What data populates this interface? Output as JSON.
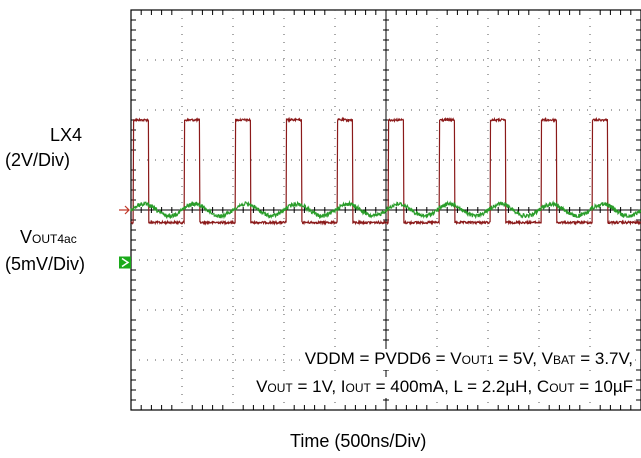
{
  "chart_data": {
    "type": "line",
    "title": "",
    "xlabel": "Time (500ns/Div)",
    "ylabel": "",
    "grid": true,
    "x_divisions": 10,
    "y_divisions": 8,
    "x_range_ns": [
      0,
      5000
    ],
    "channels": [
      {
        "name_main": "LX4",
        "name_sub": "",
        "scale": "(2V/Div)",
        "color": "#8b1a1a",
        "marker_color": "#c0392b",
        "marker_style": "outline-arrow",
        "kind": "square_wave",
        "period_ns": 500,
        "high_duration_ns": 150,
        "first_rise_ns": 25,
        "high_level_div": 1.8,
        "low_level_div": -0.25,
        "ground_marker_div": 0
      },
      {
        "name_main": "V",
        "name_sub": "OUT4ac",
        "scale": "(5mV/Div)",
        "color": "#2a9d2a",
        "marker_color": "#1aaa1a",
        "marker_style": "filled-arrow",
        "kind": "ripple",
        "period_ns": 500,
        "ripple_amplitude_div": 0.12,
        "offset_div": 0,
        "ground_marker_div": -1.05
      }
    ],
    "annotations": [
      {
        "segments": [
          [
            "VDDM = PVDD6 = V",
            ""
          ],
          [
            "OUT1",
            "sub"
          ],
          [
            " = 5V, V",
            ""
          ],
          [
            "BAT",
            "sub"
          ],
          [
            " = 3.7V,",
            ""
          ]
        ]
      },
      {
        "segments": [
          [
            "V",
            ""
          ],
          [
            "OUT",
            "sub"
          ],
          [
            " = 1V, I",
            ""
          ],
          [
            "OUT",
            "sub"
          ],
          [
            " = 400mA, L = 2.2µH, C",
            ""
          ],
          [
            "OUT",
            "sub"
          ],
          [
            " = 10µF",
            ""
          ]
        ]
      }
    ]
  }
}
